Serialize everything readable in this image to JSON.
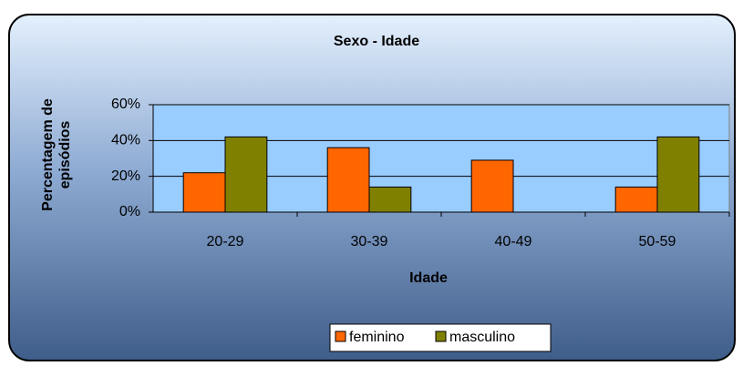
{
  "chart_data": {
    "type": "bar",
    "title": "Sexo - Idade",
    "x_label": "Idade",
    "y_label": "Percentagem de episódios",
    "categories": [
      "20-29",
      "30-39",
      "40-49",
      "50-59"
    ],
    "series": [
      {
        "name": "feminino",
        "color": "#ff6600",
        "values": [
          22,
          36,
          29,
          14
        ]
      },
      {
        "name": "masculino",
        "color": "#808000",
        "values": [
          42,
          14,
          0,
          42
        ]
      }
    ],
    "ylim": [
      0,
      60
    ],
    "yticks": [
      {
        "value": 0,
        "label": "0%"
      },
      {
        "value": 20,
        "label": "20%"
      },
      {
        "value": 40,
        "label": "40%"
      },
      {
        "value": 60,
        "label": "60%"
      }
    ],
    "grid": true,
    "legend": "bottom"
  }
}
